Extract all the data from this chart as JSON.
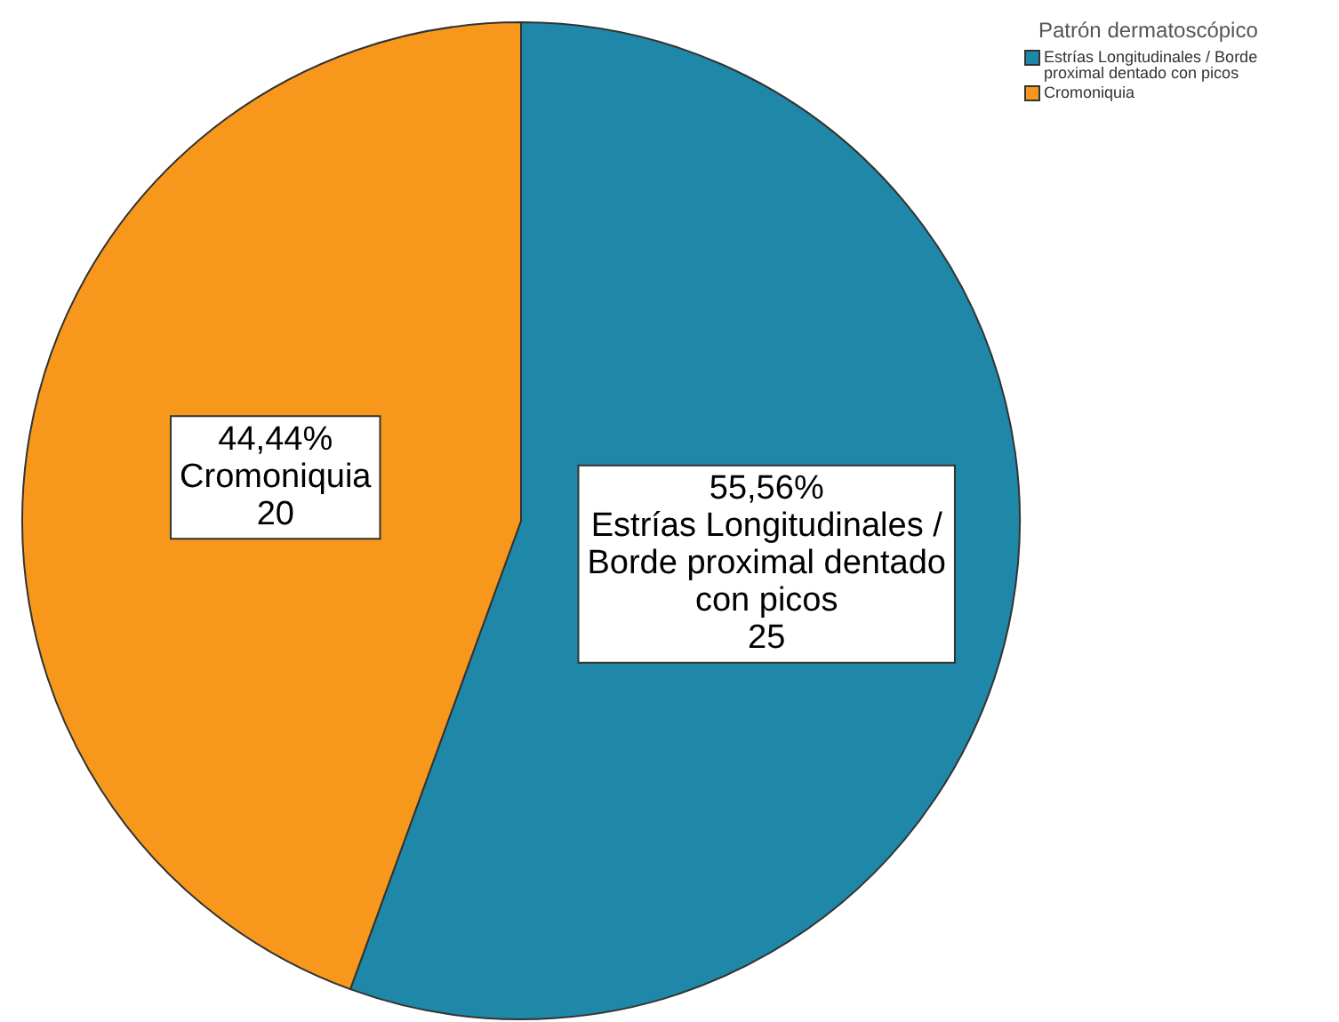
{
  "chart_data": {
    "type": "pie",
    "legend_title": "Patrón dermatoscópico",
    "legend": "top right",
    "categories": [
      "Estrías Longitudinales / Borde proximal dentado con picos",
      "Cromoniquia"
    ],
    "values": [
      55.56,
      44.44
    ],
    "colors": [
      "#1f87a8",
      "#f7981d"
    ],
    "value_labels": [
      "55,56%",
      "44,44%"
    ],
    "annotations": [
      "25",
      "20"
    ]
  }
}
